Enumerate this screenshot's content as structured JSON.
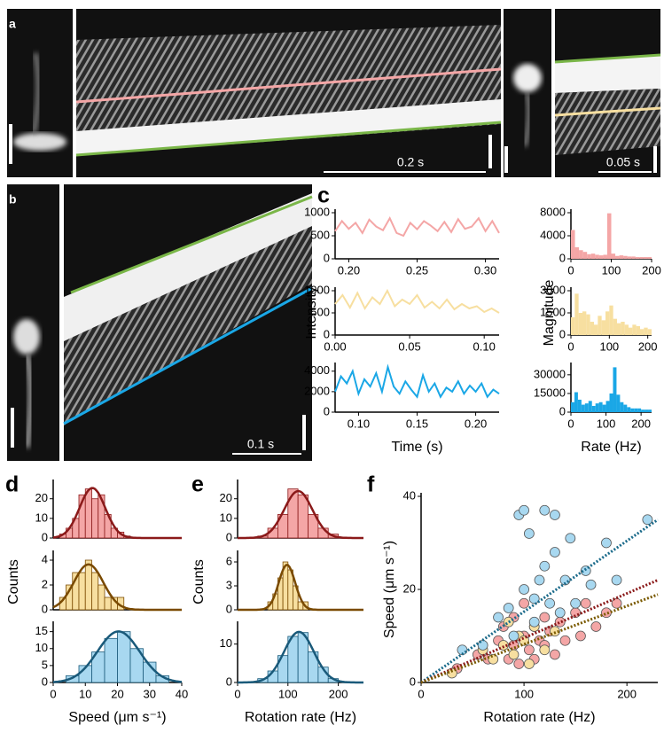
{
  "panel_labels": [
    "a",
    "b",
    "c",
    "d",
    "e",
    "f"
  ],
  "scale_bars": [
    "0.2 s",
    "0.05 s",
    "0.1 s"
  ],
  "chart_data": [
    {
      "type": "line",
      "color": "#f4a6a6",
      "xlim": [
        0.19,
        0.31
      ],
      "ylim": [
        0,
        1000
      ],
      "xticks": [
        {
          "value": 0.2,
          "label": "0.20"
        },
        0.25,
        {
          "value": 0.3,
          "label": "0.30"
        }
      ],
      "yticks": [
        0,
        500,
        1000
      ],
      "x": [
        0.19,
        0.195,
        0.2,
        0.205,
        0.21,
        0.215,
        0.22,
        0.225,
        0.23,
        0.235,
        0.24,
        0.245,
        0.25,
        0.255,
        0.26,
        0.265,
        0.27,
        0.275,
        0.28,
        0.285,
        0.29,
        0.295,
        0.3,
        0.305,
        0.31
      ],
      "values": [
        600,
        820,
        650,
        780,
        560,
        850,
        700,
        620,
        880,
        560,
        500,
        780,
        640,
        820,
        720,
        600,
        800,
        580,
        860,
        650,
        700,
        880,
        600,
        820,
        560
      ]
    },
    {
      "type": "histogram",
      "color": "#f4a6a6",
      "xlim": [
        0,
        200
      ],
      "ylim": [
        0,
        8000
      ],
      "xticks": [
        0,
        100,
        200
      ],
      "yticks": [
        0,
        4000,
        8000
      ],
      "bins": [
        0,
        10,
        20,
        30,
        40,
        50,
        60,
        70,
        80,
        90,
        100,
        110,
        120,
        130,
        140,
        150,
        160,
        170,
        180,
        190,
        200
      ],
      "values": [
        5000,
        2000,
        1500,
        1200,
        800,
        900,
        700,
        600,
        700,
        7900,
        900,
        500,
        600,
        500,
        400,
        400,
        300,
        300,
        300,
        300
      ]
    },
    {
      "type": "line",
      "color": "#f7dfa0",
      "xlim": [
        0,
        0.11
      ],
      "ylim": [
        0,
        1000
      ],
      "xticks": [
        {
          "value": 0,
          "label": "0.00"
        },
        0.05,
        {
          "value": 0.1,
          "label": "0.10"
        }
      ],
      "yticks": [
        0,
        500,
        1000
      ],
      "ylabel": "Intensity",
      "x": [
        0,
        0.005,
        0.01,
        0.015,
        0.02,
        0.025,
        0.03,
        0.035,
        0.04,
        0.045,
        0.05,
        0.055,
        0.06,
        0.065,
        0.07,
        0.075,
        0.08,
        0.085,
        0.09,
        0.095,
        0.1,
        0.105,
        0.11
      ],
      "values": [
        700,
        900,
        620,
        950,
        600,
        850,
        700,
        1000,
        650,
        800,
        700,
        900,
        620,
        750,
        600,
        800,
        580,
        700,
        600,
        650,
        520,
        600,
        500
      ]
    },
    {
      "type": "histogram",
      "color": "#f7dfa0",
      "xlim": [
        0,
        210
      ],
      "ylim": [
        0,
        3000
      ],
      "xticks": [
        0,
        100,
        200
      ],
      "yticks": [
        0,
        1500,
        3000
      ],
      "ylabel": "Magnitude",
      "bins": [
        0,
        10,
        20,
        30,
        40,
        50,
        60,
        70,
        80,
        90,
        100,
        110,
        120,
        130,
        140,
        150,
        160,
        170,
        180,
        190,
        200,
        210
      ],
      "values": [
        1200,
        2800,
        1500,
        1600,
        1400,
        900,
        700,
        1300,
        1000,
        1600,
        2000,
        1100,
        800,
        900,
        700,
        500,
        700,
        600,
        400,
        500,
        400
      ]
    },
    {
      "type": "line",
      "color": "#1aa7e6",
      "xlim": [
        0.08,
        0.22
      ],
      "ylim": [
        0,
        4500
      ],
      "xticks": [
        {
          "value": 0.1,
          "label": "0.10"
        },
        0.15,
        {
          "value": 0.2,
          "label": "0.20"
        }
      ],
      "yticks": [
        0,
        2000,
        4000
      ],
      "xlabel": "Time (s)",
      "x": [
        0.08,
        0.085,
        0.09,
        0.095,
        0.1,
        0.105,
        0.11,
        0.115,
        0.12,
        0.125,
        0.13,
        0.135,
        0.14,
        0.145,
        0.15,
        0.155,
        0.16,
        0.165,
        0.17,
        0.175,
        0.18,
        0.185,
        0.19,
        0.195,
        0.2,
        0.205,
        0.21,
        0.215,
        0.22
      ],
      "values": [
        2000,
        3500,
        2800,
        4000,
        1800,
        3200,
        2500,
        3800,
        2000,
        4400,
        2500,
        1800,
        3000,
        2200,
        1500,
        3600,
        2000,
        2800,
        1500,
        2400,
        2000,
        3000,
        1800,
        2600,
        2000,
        2800,
        1500,
        2200,
        1800
      ]
    },
    {
      "type": "histogram",
      "color": "#1aa7e6",
      "xlim": [
        0,
        230
      ],
      "ylim": [
        0,
        37000
      ],
      "xticks": [
        0,
        100,
        200
      ],
      "yticks": [
        0,
        15000,
        30000
      ],
      "xlabel": "Rate (Hz)",
      "bins": [
        0,
        10,
        20,
        30,
        40,
        50,
        60,
        70,
        80,
        90,
        100,
        110,
        120,
        130,
        140,
        150,
        160,
        170,
        180,
        190,
        200,
        210,
        220,
        230
      ],
      "values": [
        8000,
        16000,
        10000,
        6000,
        7000,
        9000,
        5000,
        7000,
        8000,
        6000,
        9000,
        15000,
        36000,
        14000,
        8000,
        6000,
        4000,
        3000,
        3000,
        3000,
        2000,
        2000,
        2000
      ]
    },
    {
      "type": "histogram",
      "color": "#f4a6a6",
      "edge_color": "#8b1a1a",
      "fit_color": "#8b1a1a",
      "xlim": [
        0,
        40
      ],
      "ylim": [
        0,
        28
      ],
      "yticks": [
        0,
        10,
        20
      ],
      "bins": [
        2,
        4,
        6,
        8,
        10,
        12,
        14,
        16,
        18,
        20,
        22,
        24
      ],
      "values": [
        2,
        5,
        10,
        22,
        25,
        20,
        22,
        12,
        5,
        3,
        1
      ]
    },
    {
      "type": "histogram",
      "color": "#f7dfa0",
      "edge_color": "#7a4a00",
      "fit_color": "#7a4a00",
      "xlim": [
        0,
        40
      ],
      "ylim": [
        0,
        4.5
      ],
      "yticks": [
        0,
        2,
        4
      ],
      "ylabel": "Counts",
      "bins": [
        2,
        4,
        6,
        8,
        10,
        12,
        14,
        16,
        18,
        20,
        22
      ],
      "values": [
        1,
        2,
        3,
        3,
        4,
        3,
        2,
        1,
        1,
        1
      ]
    },
    {
      "type": "histogram",
      "color": "#a8d8f0",
      "edge_color": "#1a5a7a",
      "fit_color": "#1a5a7a",
      "xlim": [
        0,
        40
      ],
      "ylim": [
        0,
        17
      ],
      "xticks": [
        0,
        10,
        20,
        30,
        40
      ],
      "yticks": [
        0,
        5,
        10,
        15
      ],
      "xlabel": "Speed (μm s⁻¹)",
      "bins": [
        4,
        8,
        12,
        16,
        20,
        24,
        28,
        32,
        36
      ],
      "values": [
        2,
        5,
        9,
        13,
        15,
        10,
        6,
        2
      ]
    },
    {
      "type": "histogram",
      "color": "#f4a6a6",
      "edge_color": "#8b1a1a",
      "fit_color": "#8b1a1a",
      "xlim": [
        0,
        250
      ],
      "ylim": [
        0,
        28
      ],
      "yticks": [
        0,
        10,
        20
      ],
      "bins": [
        40,
        60,
        80,
        100,
        120,
        140,
        160,
        180,
        200
      ],
      "values": [
        1,
        5,
        12,
        25,
        22,
        12,
        5,
        2
      ]
    },
    {
      "type": "histogram",
      "color": "#f7dfa0",
      "edge_color": "#7a4a00",
      "fit_color": "#7a4a00",
      "xlim": [
        0,
        250
      ],
      "ylim": [
        0,
        7
      ],
      "yticks": [
        0,
        3,
        6
      ],
      "ylabel": "Counts",
      "bins": [
        60,
        70,
        80,
        90,
        100,
        110,
        120,
        130,
        140
      ],
      "values": [
        1,
        2,
        4,
        6,
        5,
        3,
        1,
        1
      ]
    },
    {
      "type": "histogram",
      "color": "#a8d8f0",
      "edge_color": "#1a5a7a",
      "fit_color": "#1a5a7a",
      "xlim": [
        0,
        250
      ],
      "ylim": [
        0,
        15
      ],
      "xticks": [
        0,
        100,
        200
      ],
      "yticks": [
        0,
        10
      ],
      "xlabel": "Rotation rate (Hz)",
      "bins": [
        40,
        60,
        80,
        100,
        120,
        140,
        160,
        180,
        200
      ],
      "values": [
        1,
        3,
        7,
        12,
        13,
        8,
        4,
        1
      ]
    },
    {
      "type": "scatter",
      "xlim": [
        0,
        230
      ],
      "ylim": [
        0,
        40
      ],
      "xticks": [
        0,
        100,
        200
      ],
      "yticks": [
        0,
        20,
        40
      ],
      "xlabel": "Rotation rate (Hz)",
      "ylabel": "Speed (μm s⁻¹)",
      "series": [
        {
          "color": "#f4a6a6",
          "x": [
            35,
            55,
            65,
            75,
            80,
            85,
            90,
            90,
            95,
            100,
            100,
            105,
            110,
            110,
            115,
            120,
            120,
            125,
            130,
            135,
            140,
            150,
            155,
            160,
            170,
            180,
            190
          ],
          "values": [
            3,
            6,
            5,
            9,
            12,
            5,
            8,
            14,
            4,
            10,
            17,
            7,
            12,
            5,
            9,
            14,
            8,
            11,
            6,
            13,
            9,
            15,
            10,
            17,
            12,
            15,
            17
          ]
        },
        {
          "color": "#f7dfa0",
          "x": [
            30,
            60,
            70,
            80,
            85,
            90,
            95,
            100,
            105,
            110,
            120,
            130
          ],
          "values": [
            2,
            7,
            5,
            8,
            13,
            6,
            10,
            9,
            4,
            12,
            7,
            11
          ]
        },
        {
          "color": "#a8d8f0",
          "x": [
            40,
            60,
            75,
            85,
            90,
            95,
            100,
            100,
            105,
            110,
            110,
            115,
            120,
            120,
            125,
            130,
            130,
            135,
            140,
            145,
            150,
            160,
            165,
            180,
            190,
            220
          ],
          "values": [
            7,
            8,
            14,
            16,
            10,
            36,
            37,
            20,
            32,
            18,
            13,
            22,
            37,
            25,
            17,
            36,
            28,
            15,
            22,
            31,
            17,
            24,
            21,
            30,
            22,
            35
          ]
        }
      ],
      "lines": [
        {
          "color": "#1a6a8a",
          "x": [
            0,
            230
          ],
          "values": [
            0,
            35
          ]
        },
        {
          "color": "#8b1a1a",
          "x": [
            0,
            230
          ],
          "values": [
            0,
            22
          ]
        },
        {
          "color": "#7a5a00",
          "x": [
            0,
            230
          ],
          "values": [
            0,
            18.9
          ]
        }
      ]
    }
  ]
}
